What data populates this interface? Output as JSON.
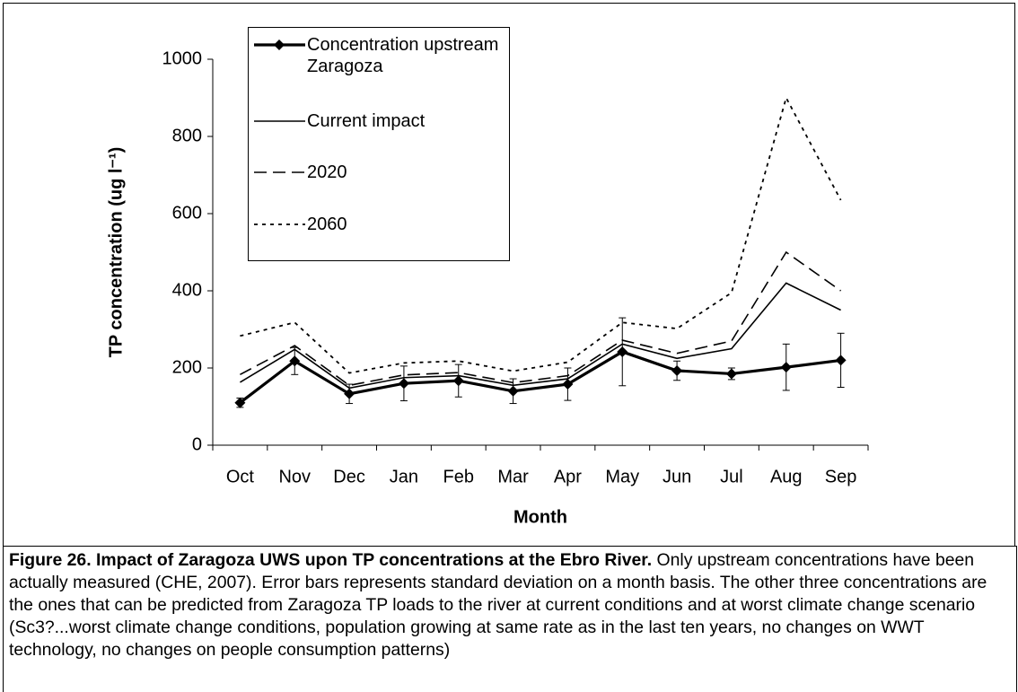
{
  "chart_data": {
    "type": "line",
    "ylabel": "TP concentration (ug l⁻¹)",
    "xlabel": "Month",
    "categories": [
      "Oct",
      "Nov",
      "Dec",
      "Jan",
      "Feb",
      "Mar",
      "Apr",
      "May",
      "Jun",
      "Jul",
      "Aug",
      "Sep"
    ],
    "series": [
      {
        "name": "Concentration upstream Zaragoza",
        "color": "#000000",
        "line_style": "solid-bold",
        "marker": "diamond",
        "values": [
          110,
          218,
          133,
          160,
          167,
          140,
          158,
          242,
          193,
          185,
          202,
          220
        ],
        "errors": [
          12,
          35,
          25,
          45,
          42,
          32,
          42,
          88,
          25,
          15,
          60,
          70
        ]
      },
      {
        "name": "Current impact",
        "color": "#000000",
        "line_style": "solid",
        "values": [
          163,
          248,
          148,
          175,
          180,
          155,
          172,
          262,
          225,
          250,
          420,
          350
        ]
      },
      {
        "name": "2020",
        "color": "#000000",
        "line_style": "dashed",
        "values": [
          183,
          258,
          155,
          182,
          188,
          162,
          180,
          272,
          238,
          270,
          500,
          400
        ]
      },
      {
        "name": "2060",
        "color": "#000000",
        "line_style": "dotted",
        "values": [
          283,
          318,
          187,
          213,
          218,
          192,
          215,
          318,
          302,
          395,
          900,
          635
        ]
      }
    ],
    "ylim": [
      0,
      1000
    ],
    "yticks": [
      0,
      200,
      400,
      600,
      800,
      1000
    ],
    "grid": false
  },
  "caption": {
    "title": "Figure 26. Impact of Zaragoza UWS upon TP concentrations at the Ebro River.",
    "text": "Only upstream concentrations have been actually measured (CHE, 2007). Error bars represents standard deviation on a month basis. The other three concentrations are the ones that can be predicted from Zaragoza TP loads to the river at current conditions and at worst climate change scenario (Sc3?...worst climate change conditions, population growing at same rate as in the last ten years, no changes on WWT technology, no changes on people consumption patterns)"
  }
}
